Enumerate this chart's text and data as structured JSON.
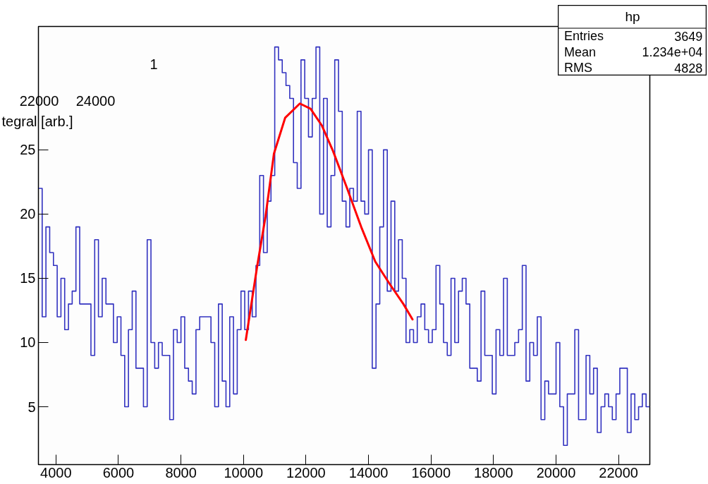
{
  "chart_data": [
    {
      "type": "histogram",
      "bins": [
        3440,
        3560,
        3680,
        3800,
        3920,
        4040,
        4160,
        4280,
        4400,
        4520,
        4640,
        4760,
        4880,
        5000,
        5120,
        5240,
        5360,
        5480,
        5600,
        5720,
        5840,
        5960,
        6080,
        6200,
        6320,
        6440,
        6560,
        6680,
        6800,
        6920,
        7040,
        7160,
        7280,
        7400,
        7520,
        7640,
        7760,
        7880,
        8000,
        8120,
        8240,
        8360,
        8480,
        8600,
        8720,
        8840,
        8960,
        9080,
        9200,
        9320,
        9440,
        9560,
        9680,
        9800,
        9920,
        10040,
        10160,
        10280,
        10400,
        10520,
        10640,
        10760,
        10880,
        11000,
        11120,
        11240,
        11360,
        11480,
        11600,
        11720,
        11840,
        11960,
        12080,
        12200,
        12320,
        12440,
        12560,
        12680,
        12800,
        12920,
        13040,
        13160,
        13280,
        13400,
        13520,
        13640,
        13760,
        13880,
        14000,
        14120,
        14240,
        14360,
        14480,
        14600,
        14720,
        14840,
        14960,
        15080,
        15200,
        15320,
        15440,
        15560,
        15680,
        15800,
        15920,
        16040,
        16160,
        16280,
        16400,
        16520,
        16640,
        16760,
        16880,
        17000,
        17120,
        17240,
        17360,
        17480,
        17600,
        17720,
        17840,
        17960,
        18080,
        18200,
        18320,
        18440,
        18560,
        18680,
        18800,
        18920,
        19040,
        19160,
        19280,
        19400,
        19520,
        19640,
        19760,
        19880,
        20000,
        20120,
        20240,
        20360,
        20480,
        20600,
        20720,
        20840,
        20960,
        21080,
        21200,
        21320,
        21440,
        21560,
        21680,
        21800,
        21920,
        22040,
        22160,
        22280,
        22400,
        22520,
        22640,
        22760,
        22880,
        23000
      ],
      "values": [
        22,
        12,
        19,
        17,
        16,
        12,
        15,
        11,
        13,
        14,
        19,
        13,
        13,
        13,
        9,
        18,
        12,
        15,
        13,
        13,
        10,
        12,
        9,
        5,
        11,
        14,
        8,
        8,
        5,
        18,
        10,
        8,
        10,
        9,
        9,
        4,
        11,
        10,
        12,
        8,
        7,
        6,
        11,
        12,
        12,
        12,
        10,
        5,
        13,
        7,
        5,
        12,
        6,
        11,
        14,
        11,
        14,
        12,
        16,
        23,
        17,
        21,
        23,
        33,
        32,
        31,
        30,
        29,
        24,
        22,
        32,
        29,
        26,
        29,
        33,
        20,
        29,
        19,
        23,
        32,
        28,
        21,
        19,
        22,
        21,
        28,
        21,
        20,
        25,
        8,
        13,
        19,
        25,
        14,
        21,
        14,
        18,
        15,
        10,
        11,
        10,
        12,
        13,
        11,
        10,
        11,
        16,
        13,
        10,
        9,
        15,
        10,
        14,
        15,
        13,
        8,
        8,
        7,
        14,
        9,
        9,
        6,
        11,
        9,
        15,
        9,
        9,
        10,
        11,
        16,
        7,
        10,
        9,
        12,
        4,
        7,
        6,
        6,
        10,
        5,
        2,
        6,
        6,
        11,
        4,
        4,
        9,
        6,
        8,
        3,
        5,
        6,
        5,
        4,
        6,
        8,
        8,
        3,
        6,
        4,
        5,
        6,
        5
      ],
      "color": "#3232c0",
      "series": [
        {
          "type": "line",
          "color": "#ff0000",
          "x": [
            10075,
            10436,
            10705,
            10975,
            11335,
            11804,
            12145,
            12505,
            12865,
            13316,
            13766,
            14216,
            14666,
            15116,
            15408
          ],
          "values": [
            10.2,
            15.9,
            19.8,
            24.7,
            27.5,
            28.6,
            28.2,
            26.9,
            24.9,
            22.0,
            19.0,
            16.3,
            14.6,
            13.0,
            11.8
          ]
        }
      ],
      "xlim": [
        3440,
        23000
      ],
      "ylim": [
        0.5,
        34.6
      ],
      "xticks": [
        4000,
        6000,
        8000,
        10000,
        12000,
        14000,
        16000,
        18000,
        20000,
        22000
      ],
      "yticks": [
        5,
        10,
        15,
        20,
        25
      ],
      "grid": false,
      "annotations": [
        "hp",
        "Entries",
        "3649",
        "Mean",
        "1.234e+04",
        "RMS",
        "4828"
      ]
    },
    {
      "type": "other",
      "annotations": [
        "22000",
        "24000",
        "tegral [arb.]",
        "1"
      ]
    }
  ]
}
